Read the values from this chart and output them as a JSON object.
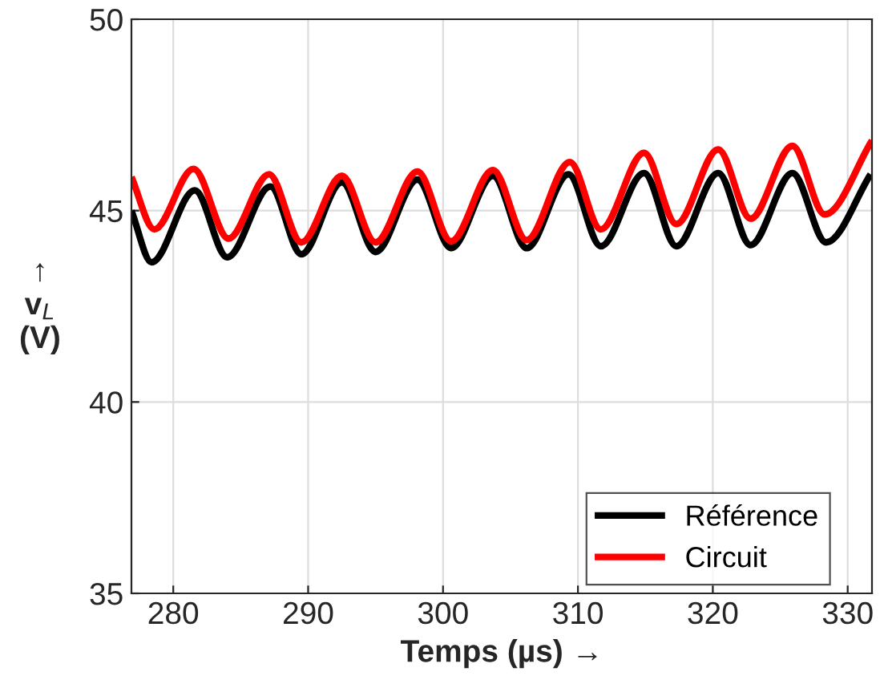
{
  "chart_data": {
    "type": "line",
    "xlabel": "Temps (µs) →",
    "ylabel": "↑\nv$_{L}$\n(V)",
    "xlim": [
      276.9,
      331.8
    ],
    "ylim": [
      35,
      50
    ],
    "xticks": [
      280,
      290,
      300,
      310,
      320,
      330
    ],
    "yticks": [
      35,
      40,
      45,
      50
    ],
    "grid": true,
    "legend": "bottom right",
    "line_style": "solid",
    "marker": "none",
    "series": [
      {
        "name": "Référence",
        "color": "#000000",
        "x": [
          276.9,
          278.4,
          281.6,
          284.0,
          287.2,
          289.5,
          292.5,
          295.0,
          298.1,
          300.6,
          303.7,
          306.2,
          309.3,
          311.7,
          314.9,
          317.3,
          320.4,
          322.8,
          325.9,
          328.4,
          331.7
        ],
        "values": [
          45.0,
          43.65,
          45.53,
          43.78,
          45.63,
          43.86,
          45.74,
          43.92,
          45.81,
          44.02,
          45.91,
          44.02,
          45.95,
          44.07,
          45.98,
          44.07,
          45.98,
          44.1,
          45.98,
          44.17,
          45.95
        ]
      },
      {
        "name": "Circuit",
        "color": "#ff0000",
        "x": [
          276.9,
          278.6,
          281.5,
          284.1,
          287.1,
          289.5,
          292.5,
          295.0,
          298.1,
          300.6,
          303.7,
          306.2,
          309.4,
          311.7,
          314.9,
          317.3,
          320.4,
          322.8,
          325.9,
          328.3,
          331.8
        ],
        "values": [
          45.88,
          44.51,
          46.09,
          44.27,
          45.95,
          44.17,
          45.91,
          44.17,
          46.02,
          44.2,
          46.06,
          44.23,
          46.27,
          44.51,
          46.51,
          44.65,
          46.6,
          44.79,
          46.69,
          44.9,
          46.83
        ]
      }
    ]
  }
}
